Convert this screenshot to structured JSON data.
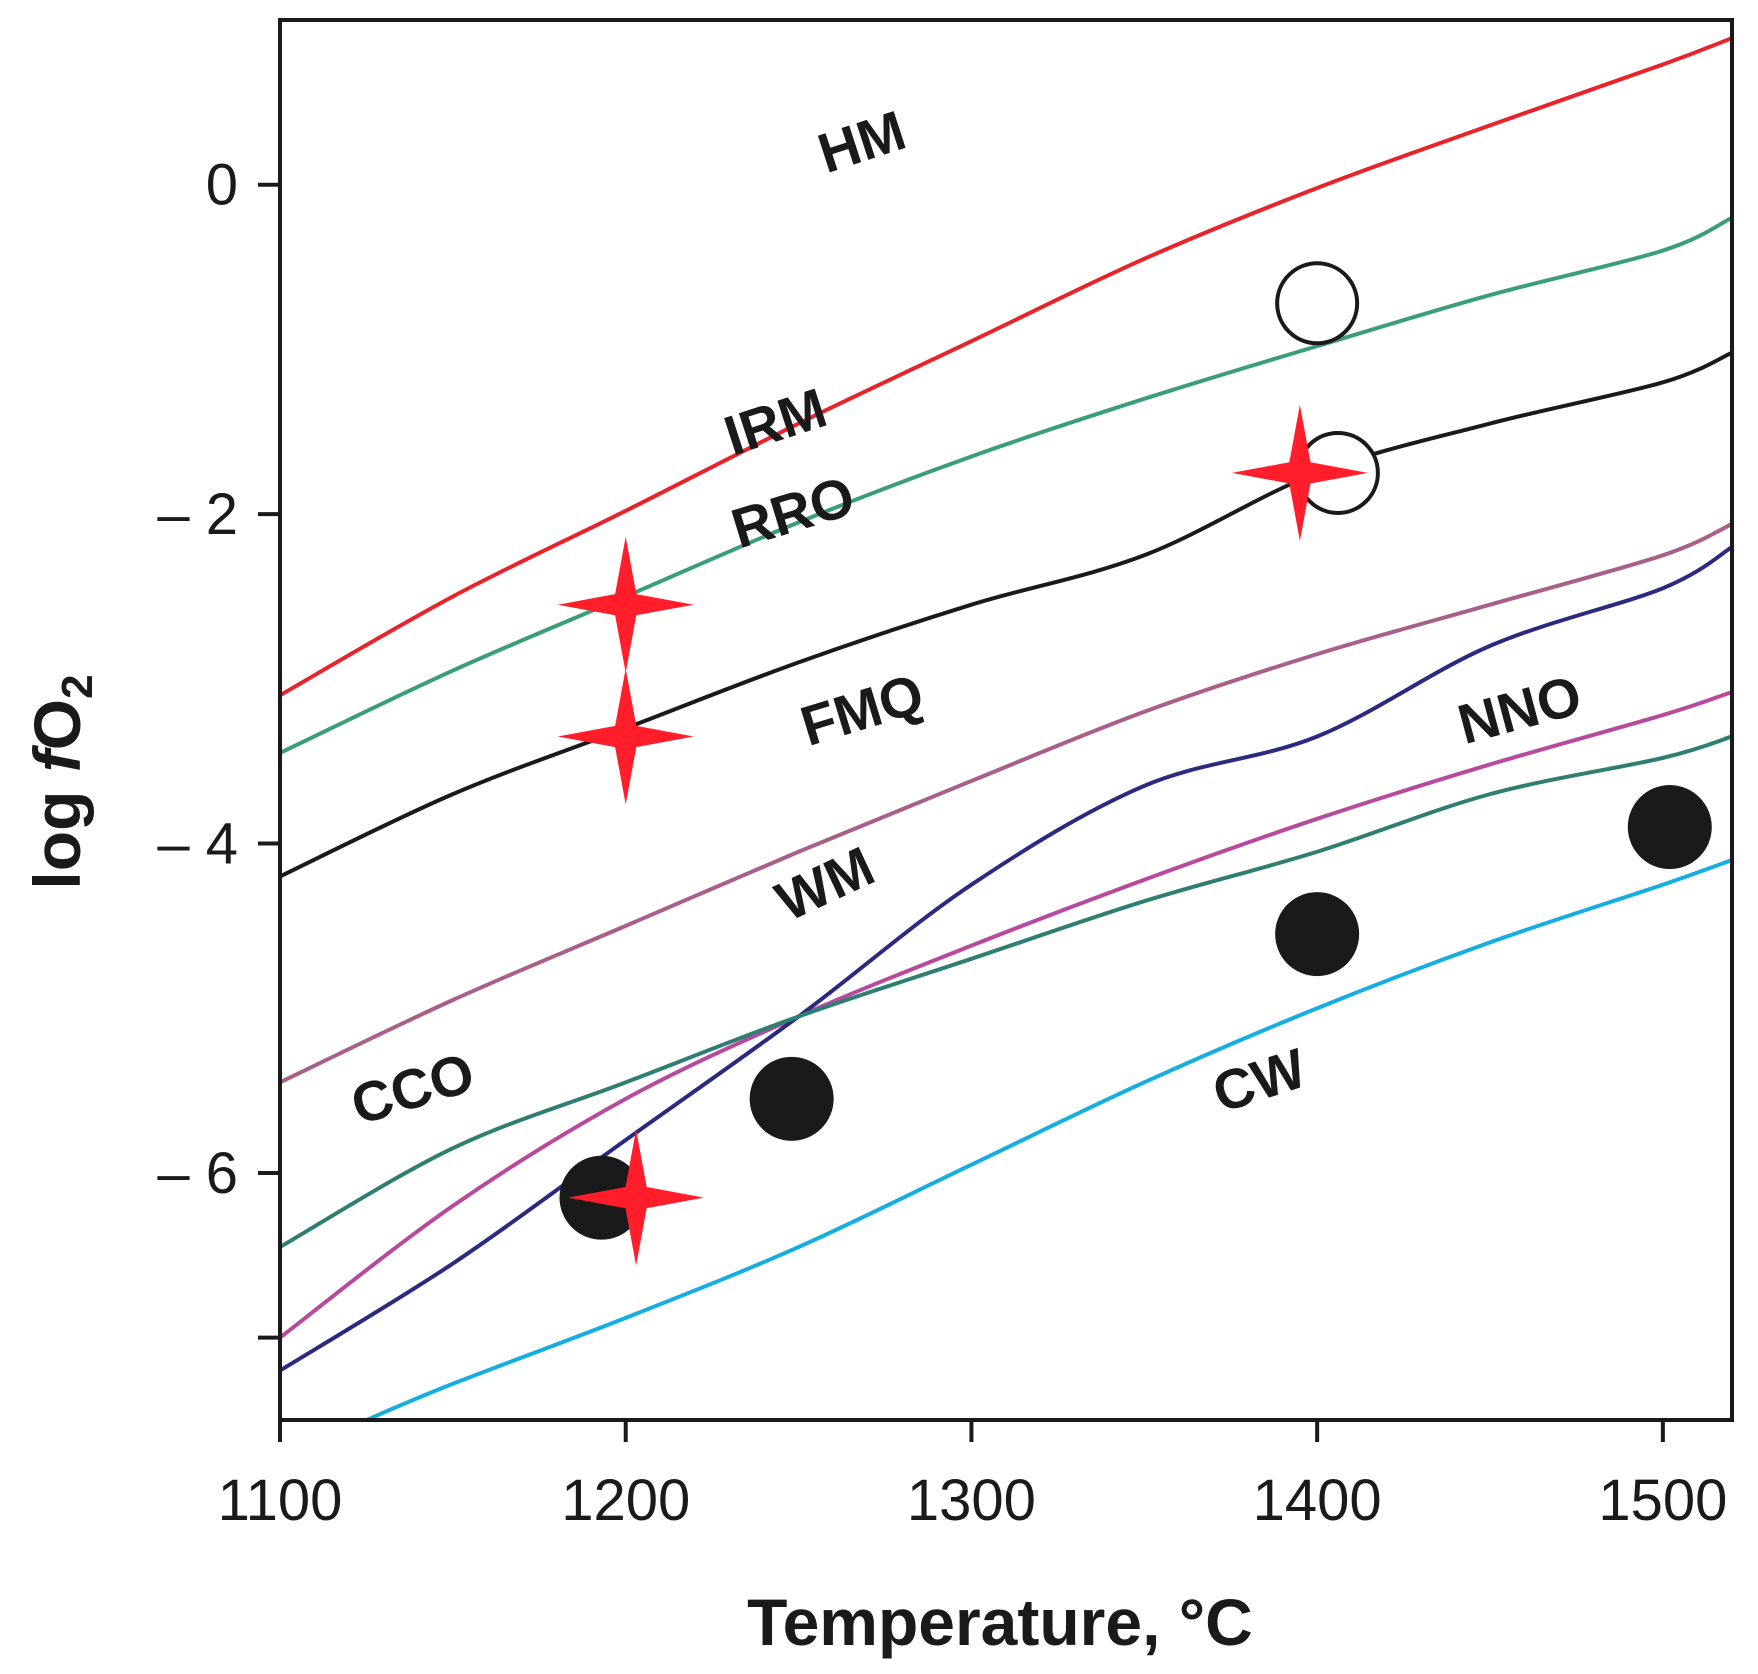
{
  "chart_data": {
    "type": "line",
    "xlabel": "Temperature, °C",
    "ylabel": {
      "prefix": "log ",
      "italic": "f",
      "main": "O",
      "subscript": "2"
    },
    "xlim": [
      1100,
      1520
    ],
    "ylim": [
      -7.5,
      1.0
    ],
    "x_ticks": [
      1100,
      1200,
      1300,
      1400,
      1500
    ],
    "y_ticks": [
      0,
      -2,
      -4,
      -6,
      -7
    ],
    "y_tick_labels": [
      "0",
      "– 2",
      "– 4",
      "– 6",
      ""
    ],
    "grid": false,
    "legend": "none",
    "series": [
      {
        "name": "HM",
        "color": "#e8242a",
        "x": [
          1100,
          1150,
          1200,
          1250,
          1300,
          1350,
          1400,
          1450,
          1500,
          1520
        ],
        "y": [
          -3.1,
          -2.5,
          -1.98,
          -1.45,
          -0.95,
          -0.45,
          -0.02,
          0.36,
          0.73,
          0.89
        ]
      },
      {
        "name": "IRM",
        "color": "#3a9e78",
        "x": [
          1100,
          1150,
          1200,
          1250,
          1300,
          1350,
          1400,
          1450,
          1500,
          1520
        ],
        "y": [
          -3.45,
          -2.95,
          -2.5,
          -2.05,
          -1.65,
          -1.3,
          -0.98,
          -0.67,
          -0.4,
          -0.2
        ]
      },
      {
        "name": "RRO",
        "color": "#1a1a1a",
        "x": [
          1100,
          1150,
          1200,
          1250,
          1300,
          1350,
          1400,
          1450,
          1500,
          1520
        ],
        "y": [
          -4.2,
          -3.7,
          -3.3,
          -2.9,
          -2.55,
          -2.25,
          -1.75,
          -1.45,
          -1.2,
          -1.02
        ]
      },
      {
        "name": "FMQ",
        "color": "#a8608a",
        "x": [
          1100,
          1150,
          1200,
          1250,
          1300,
          1350,
          1400,
          1450,
          1500,
          1520
        ],
        "y": [
          -5.45,
          -4.95,
          -4.5,
          -4.05,
          -3.62,
          -3.2,
          -2.85,
          -2.55,
          -2.25,
          -2.06
        ]
      },
      {
        "name": "NNO",
        "color": "#b84a9e",
        "x": [
          1100,
          1150,
          1200,
          1250,
          1300,
          1350,
          1400,
          1450,
          1500,
          1520
        ],
        "y": [
          -7.0,
          -6.2,
          -5.55,
          -5.05,
          -4.62,
          -4.22,
          -3.85,
          -3.52,
          -3.22,
          -3.08
        ]
      },
      {
        "name": "WM",
        "color": "#2a2a80",
        "x": [
          1100,
          1150,
          1200,
          1250,
          1300,
          1350,
          1400,
          1450,
          1500,
          1520
        ],
        "y": [
          -7.2,
          -6.55,
          -5.8,
          -5.05,
          -4.25,
          -3.65,
          -3.35,
          -2.8,
          -2.45,
          -2.2
        ]
      },
      {
        "name": "CCO",
        "color": "#2f7e72",
        "x": [
          1100,
          1150,
          1200,
          1250,
          1300,
          1350,
          1400,
          1450,
          1500,
          1520
        ],
        "y": [
          -6.45,
          -5.85,
          -5.45,
          -5.05,
          -4.7,
          -4.35,
          -4.05,
          -3.7,
          -3.48,
          -3.35
        ]
      },
      {
        "name": "CW",
        "color": "#16aee0",
        "x": [
          1125,
          1150,
          1200,
          1250,
          1300,
          1350,
          1400,
          1450,
          1500,
          1520
        ],
        "y": [
          -7.5,
          -7.28,
          -6.88,
          -6.45,
          -5.95,
          -5.45,
          -5.0,
          -4.6,
          -4.25,
          -4.1
        ]
      }
    ],
    "points": {
      "stars": [
        {
          "x": 1200,
          "y": -2.55
        },
        {
          "x": 1200,
          "y": -3.35
        },
        {
          "x": 1395,
          "y": -1.75
        },
        {
          "x": 1203,
          "y": -6.15
        }
      ],
      "open_circles": [
        {
          "x": 1400,
          "y": -0.72
        },
        {
          "x": 1406,
          "y": -1.75
        }
      ],
      "filled_circles": [
        {
          "x": 1193,
          "y": -6.15
        },
        {
          "x": 1248,
          "y": -5.55
        },
        {
          "x": 1400,
          "y": -4.55
        },
        {
          "x": 1502,
          "y": -3.9
        }
      ]
    },
    "colors": {
      "star": "#ff1e2a",
      "marker": "#1a1a1a",
      "axis": "#1a1a1a"
    }
  }
}
